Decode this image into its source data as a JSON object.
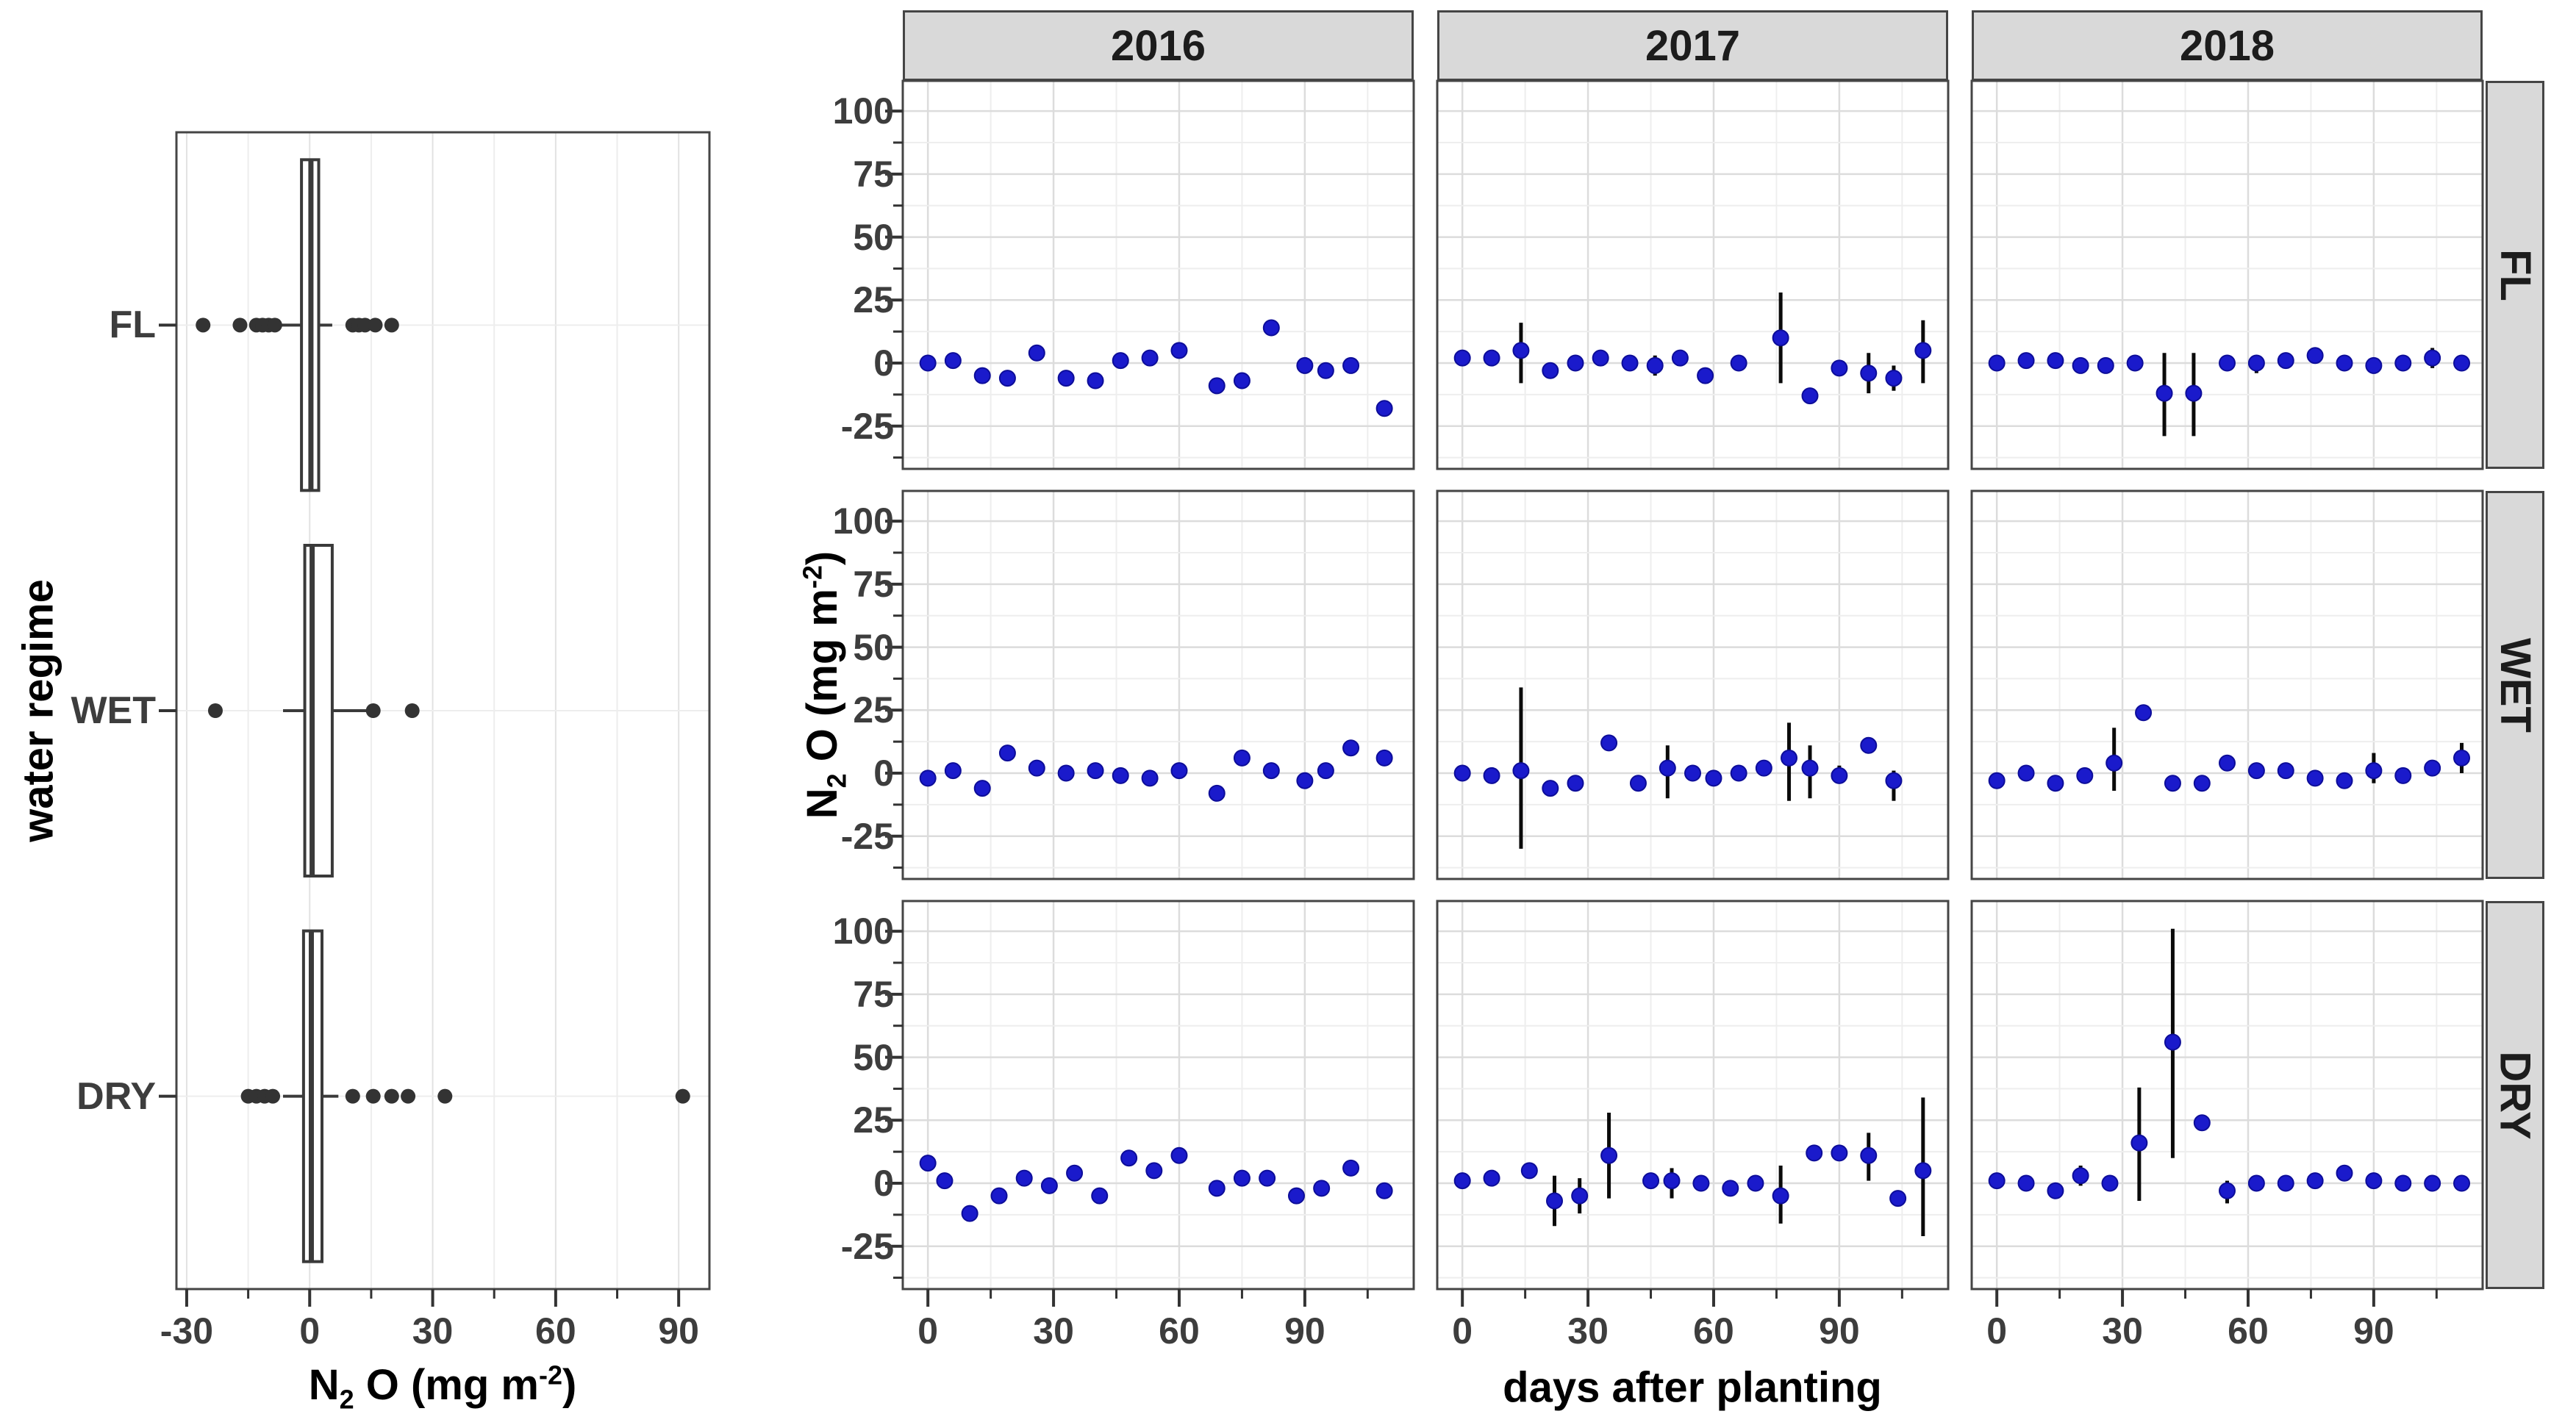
{
  "colors": {
    "point": "#1A1ACB",
    "point_edge": "#0D0D99",
    "errorbar": "#0A0A0A",
    "box": "#3A3A3A",
    "jitter": "#333333",
    "panel_border": "#454545",
    "strip_bg": "#D9D9D9",
    "grid_major": "#DCDCDC",
    "grid_minor": "#EEEEEE",
    "grid_left_major": "#E2E2E2",
    "grid_left_minor": "#EDEDED",
    "axis_text": "#3D3D3D",
    "tick": "#333333"
  },
  "chart_data": [
    {
      "type": "boxplot",
      "orientation": "horizontal",
      "ylabel": "water regime",
      "xlabel_text": "N2 O (mg m-2)",
      "xlabel_parts": {
        "pre": "N",
        "sub": "2",
        "mid": " O (mg m",
        "sup": "-2",
        "post": ")"
      },
      "xlim": [
        -32.5,
        97.5
      ],
      "xticks": [
        -30,
        0,
        30,
        60,
        90
      ],
      "xminor": [
        -15,
        15,
        45,
        75
      ],
      "categories": [
        "FL",
        "WET",
        "DRY"
      ],
      "boxes": [
        {
          "category": "FL",
          "whisker_low": -7.0,
          "q1": -2.0,
          "median": 0.3,
          "q3": 2.2,
          "whisker_high": 5.5,
          "points": [
            -26,
            -17,
            -13,
            -11.5,
            -10,
            -8.5,
            10.5,
            12,
            13.5,
            16,
            20
          ]
        },
        {
          "category": "WET",
          "whisker_low": -6.5,
          "q1": -1.2,
          "median": 0.6,
          "q3": 5.5,
          "whisker_high": 14.0,
          "points": [
            -23,
            15.5,
            25
          ]
        },
        {
          "category": "DRY",
          "whisker_low": -6.5,
          "q1": -1.5,
          "median": 0.4,
          "q3": 3.0,
          "whisker_high": 7.0,
          "points": [
            -15,
            -13,
            -11,
            -9,
            10.5,
            15.5,
            20,
            24,
            33,
            91
          ]
        }
      ]
    },
    {
      "type": "scatter-facet",
      "col_labels": [
        "2016",
        "2017",
        "2018"
      ],
      "row_labels": [
        "FL",
        "WET",
        "DRY"
      ],
      "xlabel": "days after planting",
      "ylabel_text": "N2 O (mg m-2)",
      "ylabel_parts": {
        "pre": "N",
        "sub": "2",
        "mid": " O (mg m",
        "sup": "-2",
        "post": ")"
      },
      "xlim": [
        -6,
        116
      ],
      "ylim": [
        -42,
        112
      ],
      "xticks": [
        0,
        30,
        60,
        90
      ],
      "xminor": [
        15,
        45,
        75,
        105
      ],
      "yticks": [
        100,
        75,
        50,
        25,
        0,
        -25
      ],
      "yminor": [
        87.5,
        62.5,
        37.5,
        12.5,
        -12.5,
        -37.5
      ],
      "panels": [
        {
          "col": "2016",
          "row": "FL",
          "points": [
            {
              "x": 0,
              "y": 0
            },
            {
              "x": 6,
              "y": 1
            },
            {
              "x": 13,
              "y": -5
            },
            {
              "x": 19,
              "y": -6
            },
            {
              "x": 26,
              "y": 4
            },
            {
              "x": 33,
              "y": -6
            },
            {
              "x": 40,
              "y": -7
            },
            {
              "x": 46,
              "y": 1
            },
            {
              "x": 53,
              "y": 2
            },
            {
              "x": 60,
              "y": 5
            },
            {
              "x": 69,
              "y": -9
            },
            {
              "x": 75,
              "y": -7
            },
            {
              "x": 82,
              "y": 14
            },
            {
              "x": 90,
              "y": -1
            },
            {
              "x": 95,
              "y": -3
            },
            {
              "x": 101,
              "y": -1
            },
            {
              "x": 109,
              "y": -18
            }
          ]
        },
        {
          "col": "2017",
          "row": "FL",
          "points": [
            {
              "x": 0,
              "y": 2
            },
            {
              "x": 7,
              "y": 2
            },
            {
              "x": 14,
              "y": 5,
              "lo": -8,
              "hi": 16
            },
            {
              "x": 21,
              "y": -3
            },
            {
              "x": 27,
              "y": 0
            },
            {
              "x": 33,
              "y": 2
            },
            {
              "x": 40,
              "y": 0
            },
            {
              "x": 46,
              "y": -1,
              "lo": -5,
              "hi": 3
            },
            {
              "x": 52,
              "y": 2
            },
            {
              "x": 58,
              "y": -5
            },
            {
              "x": 66,
              "y": 0
            },
            {
              "x": 76,
              "y": 10,
              "lo": -8,
              "hi": 28
            },
            {
              "x": 83,
              "y": -13
            },
            {
              "x": 90,
              "y": -2
            },
            {
              "x": 97,
              "y": -4,
              "lo": -12,
              "hi": 4
            },
            {
              "x": 103,
              "y": -6,
              "lo": -11,
              "hi": -1
            },
            {
              "x": 110,
              "y": 5,
              "lo": -8,
              "hi": 17
            }
          ]
        },
        {
          "col": "2018",
          "row": "FL",
          "points": [
            {
              "x": 0,
              "y": 0
            },
            {
              "x": 7,
              "y": 1
            },
            {
              "x": 14,
              "y": 1
            },
            {
              "x": 20,
              "y": -1
            },
            {
              "x": 26,
              "y": -1
            },
            {
              "x": 33,
              "y": 0
            },
            {
              "x": 40,
              "y": -12,
              "lo": -29,
              "hi": 4
            },
            {
              "x": 47,
              "y": -12,
              "lo": -29,
              "hi": 4
            },
            {
              "x": 55,
              "y": 0
            },
            {
              "x": 62,
              "y": 0,
              "lo": -4,
              "hi": 3
            },
            {
              "x": 69,
              "y": 1
            },
            {
              "x": 76,
              "y": 3
            },
            {
              "x": 83,
              "y": 0
            },
            {
              "x": 90,
              "y": -1
            },
            {
              "x": 97,
              "y": 0
            },
            {
              "x": 104,
              "y": 2,
              "lo": -2,
              "hi": 6
            },
            {
              "x": 111,
              "y": 0
            }
          ]
        },
        {
          "col": "2016",
          "row": "WET",
          "points": [
            {
              "x": 0,
              "y": -2
            },
            {
              "x": 6,
              "y": 1
            },
            {
              "x": 13,
              "y": -6
            },
            {
              "x": 19,
              "y": 8
            },
            {
              "x": 26,
              "y": 2
            },
            {
              "x": 33,
              "y": 0
            },
            {
              "x": 40,
              "y": 1
            },
            {
              "x": 46,
              "y": -1
            },
            {
              "x": 53,
              "y": -2
            },
            {
              "x": 60,
              "y": 1
            },
            {
              "x": 69,
              "y": -8
            },
            {
              "x": 75,
              "y": 6
            },
            {
              "x": 82,
              "y": 1
            },
            {
              "x": 90,
              "y": -3
            },
            {
              "x": 95,
              "y": 1
            },
            {
              "x": 101,
              "y": 10
            },
            {
              "x": 109,
              "y": 6
            }
          ]
        },
        {
          "col": "2017",
          "row": "WET",
          "points": [
            {
              "x": 0,
              "y": 0
            },
            {
              "x": 7,
              "y": -1
            },
            {
              "x": 14,
              "y": 1,
              "lo": -30,
              "hi": 34
            },
            {
              "x": 21,
              "y": -6
            },
            {
              "x": 27,
              "y": -4
            },
            {
              "x": 35,
              "y": 12
            },
            {
              "x": 42,
              "y": -4
            },
            {
              "x": 49,
              "y": 2,
              "lo": -10,
              "hi": 11
            },
            {
              "x": 55,
              "y": 0
            },
            {
              "x": 60,
              "y": -2
            },
            {
              "x": 66,
              "y": 0
            },
            {
              "x": 72,
              "y": 2
            },
            {
              "x": 78,
              "y": 6,
              "lo": -11,
              "hi": 20
            },
            {
              "x": 83,
              "y": 2,
              "lo": -10,
              "hi": 11
            },
            {
              "x": 90,
              "y": -1,
              "lo": -4,
              "hi": 3
            },
            {
              "x": 97,
              "y": 11
            },
            {
              "x": 103,
              "y": -3,
              "lo": -11,
              "hi": 1
            }
          ]
        },
        {
          "col": "2018",
          "row": "WET",
          "points": [
            {
              "x": 0,
              "y": -3
            },
            {
              "x": 7,
              "y": 0
            },
            {
              "x": 14,
              "y": -4
            },
            {
              "x": 21,
              "y": -1
            },
            {
              "x": 28,
              "y": 4,
              "lo": -7,
              "hi": 18
            },
            {
              "x": 35,
              "y": 24
            },
            {
              "x": 42,
              "y": -4
            },
            {
              "x": 49,
              "y": -4
            },
            {
              "x": 55,
              "y": 4
            },
            {
              "x": 62,
              "y": 1
            },
            {
              "x": 69,
              "y": 1
            },
            {
              "x": 76,
              "y": -2
            },
            {
              "x": 83,
              "y": -3
            },
            {
              "x": 90,
              "y": 1,
              "lo": -4,
              "hi": 8
            },
            {
              "x": 97,
              "y": -1
            },
            {
              "x": 104,
              "y": 2
            },
            {
              "x": 111,
              "y": 6,
              "lo": 0,
              "hi": 12
            }
          ]
        },
        {
          "col": "2016",
          "row": "DRY",
          "points": [
            {
              "x": 0,
              "y": 8
            },
            {
              "x": 4,
              "y": 1
            },
            {
              "x": 10,
              "y": -12
            },
            {
              "x": 17,
              "y": -5
            },
            {
              "x": 23,
              "y": 2
            },
            {
              "x": 29,
              "y": -1
            },
            {
              "x": 35,
              "y": 4
            },
            {
              "x": 41,
              "y": -5
            },
            {
              "x": 48,
              "y": 10
            },
            {
              "x": 54,
              "y": 5
            },
            {
              "x": 60,
              "y": 11
            },
            {
              "x": 69,
              "y": -2
            },
            {
              "x": 75,
              "y": 2
            },
            {
              "x": 81,
              "y": 2
            },
            {
              "x": 88,
              "y": -5
            },
            {
              "x": 94,
              "y": -2
            },
            {
              "x": 101,
              "y": 6
            },
            {
              "x": 109,
              "y": -3
            }
          ]
        },
        {
          "col": "2017",
          "row": "DRY",
          "points": [
            {
              "x": 0,
              "y": 1
            },
            {
              "x": 7,
              "y": 2
            },
            {
              "x": 16,
              "y": 5
            },
            {
              "x": 22,
              "y": -7,
              "lo": -17,
              "hi": 3
            },
            {
              "x": 28,
              "y": -5,
              "lo": -12,
              "hi": 2
            },
            {
              "x": 35,
              "y": 11,
              "lo": -6,
              "hi": 28
            },
            {
              "x": 45,
              "y": 1
            },
            {
              "x": 50,
              "y": 1,
              "lo": -6,
              "hi": 6
            },
            {
              "x": 57,
              "y": 0
            },
            {
              "x": 64,
              "y": -2
            },
            {
              "x": 70,
              "y": 0
            },
            {
              "x": 76,
              "y": -5,
              "lo": -16,
              "hi": 7
            },
            {
              "x": 84,
              "y": 12
            },
            {
              "x": 90,
              "y": 12
            },
            {
              "x": 97,
              "y": 11,
              "lo": 1,
              "hi": 20
            },
            {
              "x": 104,
              "y": -6
            },
            {
              "x": 110,
              "y": 5,
              "lo": -21,
              "hi": 34
            }
          ]
        },
        {
          "col": "2018",
          "row": "DRY",
          "points": [
            {
              "x": 0,
              "y": 1
            },
            {
              "x": 7,
              "y": 0
            },
            {
              "x": 14,
              "y": -3
            },
            {
              "x": 20,
              "y": 3,
              "lo": -1,
              "hi": 7
            },
            {
              "x": 27,
              "y": 0
            },
            {
              "x": 34,
              "y": 16,
              "lo": -7,
              "hi": 38
            },
            {
              "x": 42,
              "y": 56,
              "lo": 10,
              "hi": 101
            },
            {
              "x": 49,
              "y": 24
            },
            {
              "x": 55,
              "y": -3,
              "lo": -8,
              "hi": 1
            },
            {
              "x": 62,
              "y": 0
            },
            {
              "x": 69,
              "y": 0
            },
            {
              "x": 76,
              "y": 1
            },
            {
              "x": 83,
              "y": 4
            },
            {
              "x": 90,
              "y": 1
            },
            {
              "x": 97,
              "y": 0
            },
            {
              "x": 104,
              "y": 0
            },
            {
              "x": 111,
              "y": 0
            }
          ]
        }
      ]
    }
  ]
}
